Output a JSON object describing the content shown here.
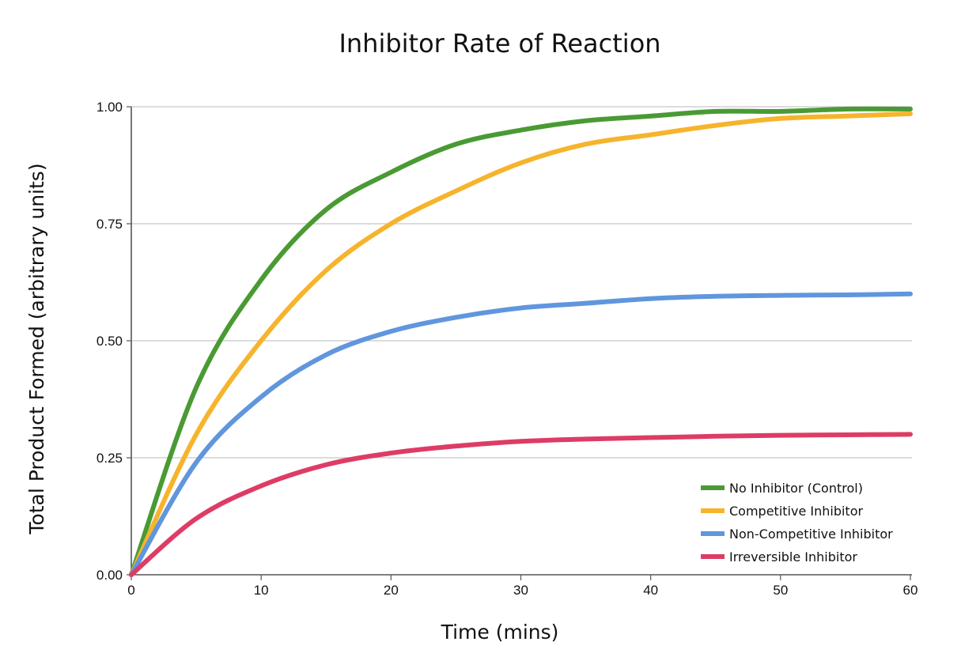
{
  "chart_data": {
    "type": "line",
    "title": "Inhibitor Rate of Reaction",
    "xlabel": "Time (mins)",
    "ylabel": "Total Product Formed (arbitrary units)",
    "xlim": [
      0,
      60
    ],
    "ylim": [
      0,
      1
    ],
    "x_ticks": [
      0,
      10,
      20,
      30,
      40,
      50,
      60
    ],
    "x_tick_labels": [
      "0",
      "10",
      "20",
      "30",
      "40",
      "50",
      "60"
    ],
    "y_ticks": [
      0,
      0.25,
      0.5,
      0.75,
      1.0
    ],
    "y_tick_labels": [
      "0.00",
      "0.25",
      "0.50",
      "0.75",
      "1.00"
    ],
    "grid": "horizontal",
    "legend_position": "bottom-right",
    "x": [
      0,
      5,
      10,
      15,
      20,
      25,
      30,
      35,
      40,
      45,
      50,
      55,
      60
    ],
    "series": [
      {
        "name": "No Inhibitor (Control)",
        "color": "#4a9a34",
        "values": [
          0,
          0.4,
          0.63,
          0.78,
          0.86,
          0.92,
          0.95,
          0.97,
          0.98,
          0.99,
          0.99,
          0.995,
          0.995
        ]
      },
      {
        "name": "Competitive Inhibitor",
        "color": "#f6b42d",
        "values": [
          0,
          0.3,
          0.5,
          0.65,
          0.75,
          0.82,
          0.88,
          0.92,
          0.94,
          0.96,
          0.975,
          0.98,
          0.985
        ]
      },
      {
        "name": "Non-Competitive Inhibitor",
        "color": "#6096dd",
        "values": [
          0,
          0.24,
          0.38,
          0.47,
          0.52,
          0.55,
          0.57,
          0.58,
          0.59,
          0.595,
          0.597,
          0.598,
          0.6
        ]
      },
      {
        "name": "Irreversible Inhibitor",
        "color": "#dd3c66",
        "values": [
          0,
          0.12,
          0.19,
          0.235,
          0.26,
          0.275,
          0.285,
          0.29,
          0.293,
          0.296,
          0.298,
          0.299,
          0.3
        ]
      }
    ]
  }
}
